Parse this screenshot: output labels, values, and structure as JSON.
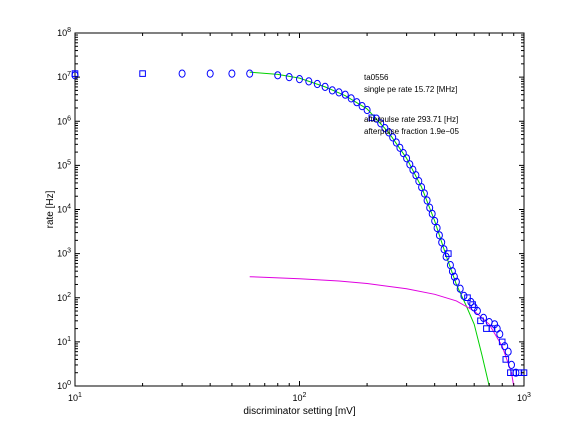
{
  "chart_data": {
    "type": "scatter",
    "xscale": "log",
    "yscale": "log",
    "xlim": [
      10,
      1000
    ],
    "ylim": [
      1,
      100000000
    ],
    "grid": false,
    "xlabel": "discriminator setting [mV]",
    "ylabel": "rate [Hz]",
    "x_ticks": [
      {
        "value": 10,
        "base": "10",
        "exp": "1"
      },
      {
        "value": 100,
        "base": "10",
        "exp": "2"
      },
      {
        "value": 1000,
        "base": "10",
        "exp": "3"
      }
    ],
    "y_ticks": [
      {
        "value": 1,
        "base": "10",
        "exp": "0"
      },
      {
        "value": 10,
        "base": "10",
        "exp": "1"
      },
      {
        "value": 100,
        "base": "10",
        "exp": "2"
      },
      {
        "value": 1000,
        "base": "10",
        "exp": "3"
      },
      {
        "value": 10000,
        "base": "10",
        "exp": "4"
      },
      {
        "value": 100000,
        "base": "10",
        "exp": "5"
      },
      {
        "value": 1000000,
        "base": "10",
        "exp": "6"
      },
      {
        "value": 10000000,
        "base": "10",
        "exp": "7"
      },
      {
        "value": 100000000,
        "base": "10",
        "exp": "8"
      }
    ],
    "annotations": [
      "ta0556",
      "single pe rate 15.72 [MHz]",
      "afterpulse rate 293.71 [Hz]",
      "afterpulse fraction 1.9e−05"
    ],
    "series": [
      {
        "marker": "square",
        "color": "#0000ff",
        "points": [
          [
            10,
            12000000
          ],
          [
            20,
            12000000
          ],
          [
            210,
            1200000
          ],
          [
            460,
            1000
          ],
          [
            560,
            100
          ],
          [
            590,
            70
          ],
          [
            640,
            30
          ],
          [
            680,
            20
          ],
          [
            720,
            20
          ],
          [
            800,
            10
          ],
          [
            830,
            4
          ],
          [
            870,
            2
          ],
          [
            900,
            2
          ],
          [
            950,
            2
          ],
          [
            1000,
            2
          ]
        ]
      },
      {
        "marker": "circle",
        "color": "#0000ff",
        "points": [
          [
            10,
            11000000
          ],
          [
            30,
            12000000
          ],
          [
            40,
            12000000
          ],
          [
            50,
            12000000
          ],
          [
            60,
            12000000
          ],
          [
            80,
            11000000
          ],
          [
            90,
            10000000
          ],
          [
            100,
            9000000
          ],
          [
            110,
            8000000
          ],
          [
            120,
            7000000
          ],
          [
            130,
            6000000
          ],
          [
            140,
            5000000
          ],
          [
            150,
            4500000
          ],
          [
            160,
            4000000
          ],
          [
            170,
            3300000
          ],
          [
            180,
            2700000
          ],
          [
            190,
            2200000
          ],
          [
            200,
            1800000
          ],
          [
            220,
            1150000
          ],
          [
            230,
            900000
          ],
          [
            240,
            700000
          ],
          [
            250,
            560000
          ],
          [
            260,
            430000
          ],
          [
            270,
            330000
          ],
          [
            280,
            250000
          ],
          [
            290,
            190000
          ],
          [
            300,
            145000
          ],
          [
            310,
            105000
          ],
          [
            320,
            80000
          ],
          [
            330,
            60000
          ],
          [
            340,
            44000
          ],
          [
            350,
            32000
          ],
          [
            360,
            23000
          ],
          [
            370,
            16000
          ],
          [
            380,
            11000
          ],
          [
            390,
            8000
          ],
          [
            400,
            5500
          ],
          [
            410,
            3800
          ],
          [
            420,
            2600
          ],
          [
            430,
            1800
          ],
          [
            440,
            1250
          ],
          [
            450,
            850
          ],
          [
            470,
            550
          ],
          [
            480,
            400
          ],
          [
            490,
            300
          ],
          [
            500,
            230
          ],
          [
            520,
            160
          ],
          [
            540,
            110
          ],
          [
            580,
            80
          ],
          [
            600,
            60
          ],
          [
            620,
            50
          ],
          [
            660,
            35
          ],
          [
            700,
            28
          ],
          [
            740,
            25
          ],
          [
            760,
            20
          ],
          [
            780,
            15
          ],
          [
            820,
            8
          ],
          [
            850,
            6
          ],
          [
            880,
            3
          ],
          [
            920,
            2
          ]
        ]
      }
    ],
    "curves": [
      {
        "color": "#00d000",
        "points": [
          [
            60,
            13000000
          ],
          [
            80,
            11500000
          ],
          [
            100,
            9500000
          ],
          [
            130,
            6000000
          ],
          [
            160,
            3800000
          ],
          [
            200,
            1900000
          ],
          [
            250,
            550000
          ],
          [
            300,
            145000
          ],
          [
            350,
            32000
          ],
          [
            400,
            5500
          ],
          [
            450,
            900
          ],
          [
            500,
            200
          ],
          [
            550,
            70
          ],
          [
            600,
            25
          ],
          [
            650,
            5
          ],
          [
            700,
            1
          ]
        ]
      },
      {
        "color": "#e000e0",
        "points": [
          [
            60,
            300
          ],
          [
            100,
            270
          ],
          [
            150,
            240
          ],
          [
            200,
            210
          ],
          [
            300,
            160
          ],
          [
            400,
            120
          ],
          [
            500,
            85
          ],
          [
            600,
            50
          ],
          [
            700,
            25
          ],
          [
            800,
            8
          ],
          [
            880,
            2
          ],
          [
            900,
            1
          ]
        ]
      }
    ]
  }
}
